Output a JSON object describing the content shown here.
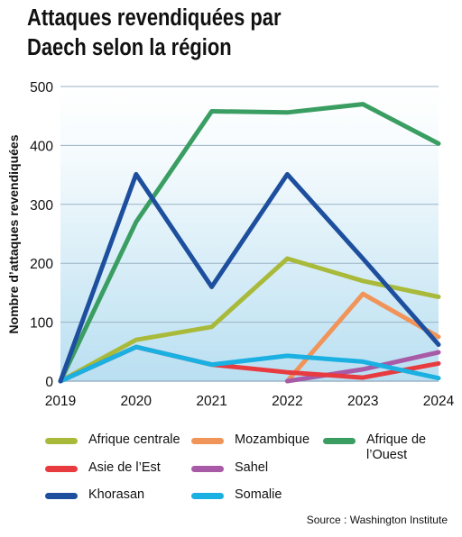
{
  "title": {
    "line1": "Attaques revendiquées par",
    "line2": "Daech selon la région"
  },
  "source": "Source : Washington Institute",
  "colors": {
    "grid": "#9ab3c7",
    "background_top": "#ffffff",
    "background_bottom": "#b9dff1"
  },
  "chart_data": {
    "type": "line",
    "title": "Attaques revendiquées par Daech selon la région",
    "xlabel": "",
    "ylabel": "Nombre d’attaques revendiquées",
    "x": [
      "2019",
      "2020",
      "2021",
      "2022",
      "2023",
      "2024"
    ],
    "ylim": [
      0,
      500
    ],
    "yticks": [
      "0",
      "100",
      "200",
      "300",
      "400",
      "500"
    ],
    "grid": true,
    "legend_position": "bottom",
    "series": [
      {
        "name": "Afrique de\nl’Ouest",
        "color": "#3a9e62",
        "values": [
          0,
          270,
          458,
          456,
          470,
          403
        ]
      },
      {
        "name": "Afrique centrale",
        "color": "#a9ba3a",
        "values": [
          0,
          70,
          92,
          208,
          170,
          143
        ]
      },
      {
        "name": "Mozambique",
        "color": "#f0945a",
        "values": [
          null,
          null,
          null,
          0,
          148,
          75
        ]
      },
      {
        "name": "Sahel",
        "color": "#a95aa6",
        "values": [
          null,
          null,
          null,
          0,
          20,
          49
        ]
      },
      {
        "name": "Asie de l’Est",
        "color": "#e83b3f",
        "values": [
          0,
          58,
          28,
          15,
          6,
          30
        ]
      },
      {
        "name": "Somalie",
        "color": "#1ab0e2",
        "values": [
          0,
          58,
          28,
          43,
          33,
          5
        ]
      },
      {
        "name": "Khorasan",
        "color": "#1d4f9e",
        "values": [
          0,
          351,
          160,
          351,
          208,
          62
        ]
      }
    ]
  },
  "legend": [
    {
      "label": "Afrique centrale",
      "color": "#a9ba3a"
    },
    {
      "label": "Mozambique",
      "color": "#f0945a"
    },
    {
      "label": "Afrique de\nl’Ouest",
      "color": "#3a9e62"
    },
    {
      "label": "Asie de l’Est",
      "color": "#e83b3f"
    },
    {
      "label": "Sahel",
      "color": "#a95aa6"
    },
    {
      "label": "Khorasan",
      "color": "#1d4f9e"
    },
    {
      "label": "Somalie",
      "color": "#1ab0e2"
    }
  ]
}
